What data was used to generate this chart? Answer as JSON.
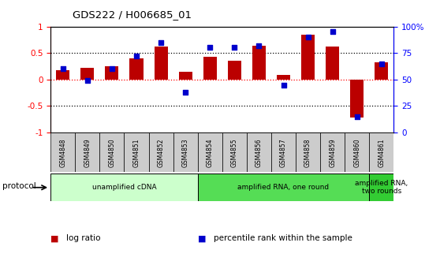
{
  "title": "GDS222 / H006685_01",
  "samples": [
    "GSM4848",
    "GSM4849",
    "GSM4850",
    "GSM4851",
    "GSM4852",
    "GSM4853",
    "GSM4854",
    "GSM4855",
    "GSM4856",
    "GSM4857",
    "GSM4858",
    "GSM4859",
    "GSM4860",
    "GSM4861"
  ],
  "log_ratio": [
    0.18,
    0.22,
    0.25,
    0.4,
    0.62,
    0.14,
    0.43,
    0.35,
    0.63,
    0.08,
    0.85,
    0.62,
    -0.72,
    0.33
  ],
  "percentile_rank": [
    60,
    49,
    60,
    72,
    85,
    38,
    80,
    80,
    82,
    45,
    90,
    95,
    15,
    65
  ],
  "bar_color": "#bb0000",
  "dot_color": "#0000cc",
  "ylim": [
    -1,
    1
  ],
  "y2lim": [
    0,
    100
  ],
  "yticks": [
    -1,
    -0.5,
    0,
    0.5,
    1
  ],
  "y2ticks": [
    0,
    25,
    50,
    75,
    100
  ],
  "y2ticklabels": [
    "0",
    "25",
    "50",
    "75",
    "100%"
  ],
  "hlines_black": [
    0.5,
    -0.5
  ],
  "hline_red": 0,
  "protocol_groups": [
    {
      "label": "unamplified cDNA",
      "start": 0,
      "end": 5,
      "color": "#ccffcc"
    },
    {
      "label": "amplified RNA, one round",
      "start": 6,
      "end": 12,
      "color": "#55dd55"
    },
    {
      "label": "amplified RNA,\ntwo rounds",
      "start": 13,
      "end": 13,
      "color": "#33cc33"
    }
  ],
  "protocol_label": "protocol",
  "legend_items": [
    {
      "label": "log ratio",
      "color": "#bb0000"
    },
    {
      "label": "percentile rank within the sample",
      "color": "#0000cc"
    }
  ],
  "sample_bg_color": "#cccccc",
  "bar_width": 0.55,
  "plot_bg": "#ffffff"
}
